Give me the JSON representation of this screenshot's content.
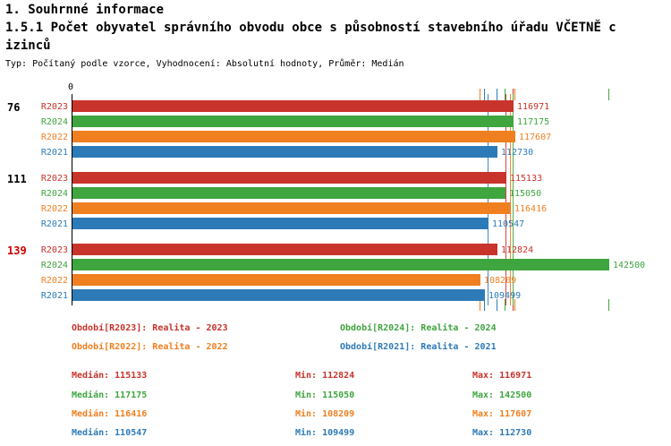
{
  "header": {
    "title": "1. Souhrnné informace",
    "subtitle_line1": "1.5.1 Počet obyvatel správního obvodu obce s působností stavebního úřadu VČETNĚ c",
    "subtitle_line2": "izinců",
    "meta": "Typ: Počítaný podle vzorce, Vyhodnocení: Absolutní hodnoty, Průměr: Medián"
  },
  "colors": {
    "r2023": "#c8332b",
    "r2024": "#3fa53f",
    "r2022": "#f07f1f",
    "r2021": "#2d7ab8",
    "group_highlight": "#cc0000",
    "axis": "#000000"
  },
  "chart_data": {
    "type": "bar",
    "orientation": "horizontal",
    "title": "1.5.1 Počet obyvatel správního obvodu obce s působností stavebního úřadu VČETNĚ cizinců",
    "xlabel": "",
    "ylabel": "",
    "xlim": [
      0,
      142500
    ],
    "axis_zero_label": "0",
    "grid": false,
    "series_order": [
      "R2023",
      "R2024",
      "R2022",
      "R2021"
    ],
    "groups": [
      {
        "label": "76",
        "label_color": "#000000",
        "values": {
          "R2023": 116971,
          "R2024": 117175,
          "R2022": 117607,
          "R2021": 112730
        }
      },
      {
        "label": "111",
        "label_color": "#000000",
        "values": {
          "R2023": 115133,
          "R2024": 115050,
          "R2022": 116416,
          "R2021": 110547
        }
      },
      {
        "label": "139",
        "label_color": "#cc0000",
        "values": {
          "R2023": 112824,
          "R2024": 142500,
          "R2022": 108209,
          "R2021": 109499
        }
      }
    ],
    "series_stats": [
      {
        "name": "R2023",
        "median": 115133,
        "min": 112824,
        "max": 116971
      },
      {
        "name": "R2024",
        "median": 117175,
        "min": 115050,
        "max": 142500
      },
      {
        "name": "R2022",
        "median": 116416,
        "min": 108209,
        "max": 117607
      },
      {
        "name": "R2021",
        "median": 110547,
        "min": 109499,
        "max": 112730
      }
    ]
  },
  "legend": {
    "items": [
      {
        "series": "R2023",
        "label": "Období[R2023]: Realita - 2023"
      },
      {
        "series": "R2024",
        "label": "Období[R2024]: Realita - 2024"
      },
      {
        "series": "R2022",
        "label": "Období[R2022]: Realita - 2022"
      },
      {
        "series": "R2021",
        "label": "Období[R2021]: Realita - 2021"
      }
    ]
  },
  "stats": {
    "rows": [
      {
        "series": "R2023",
        "median_label": "Medián: 115133",
        "min_label": "Min: 112824",
        "max_label": "Max: 116971"
      },
      {
        "series": "R2024",
        "median_label": "Medián: 117175",
        "min_label": "Min: 115050",
        "max_label": "Max: 142500"
      },
      {
        "series": "R2022",
        "median_label": "Medián: 116416",
        "min_label": "Min: 108209",
        "max_label": "Max: 117607"
      },
      {
        "series": "R2021",
        "median_label": "Medián: 110547",
        "min_label": "Min: 109499",
        "max_label": "Max: 112730"
      }
    ]
  }
}
